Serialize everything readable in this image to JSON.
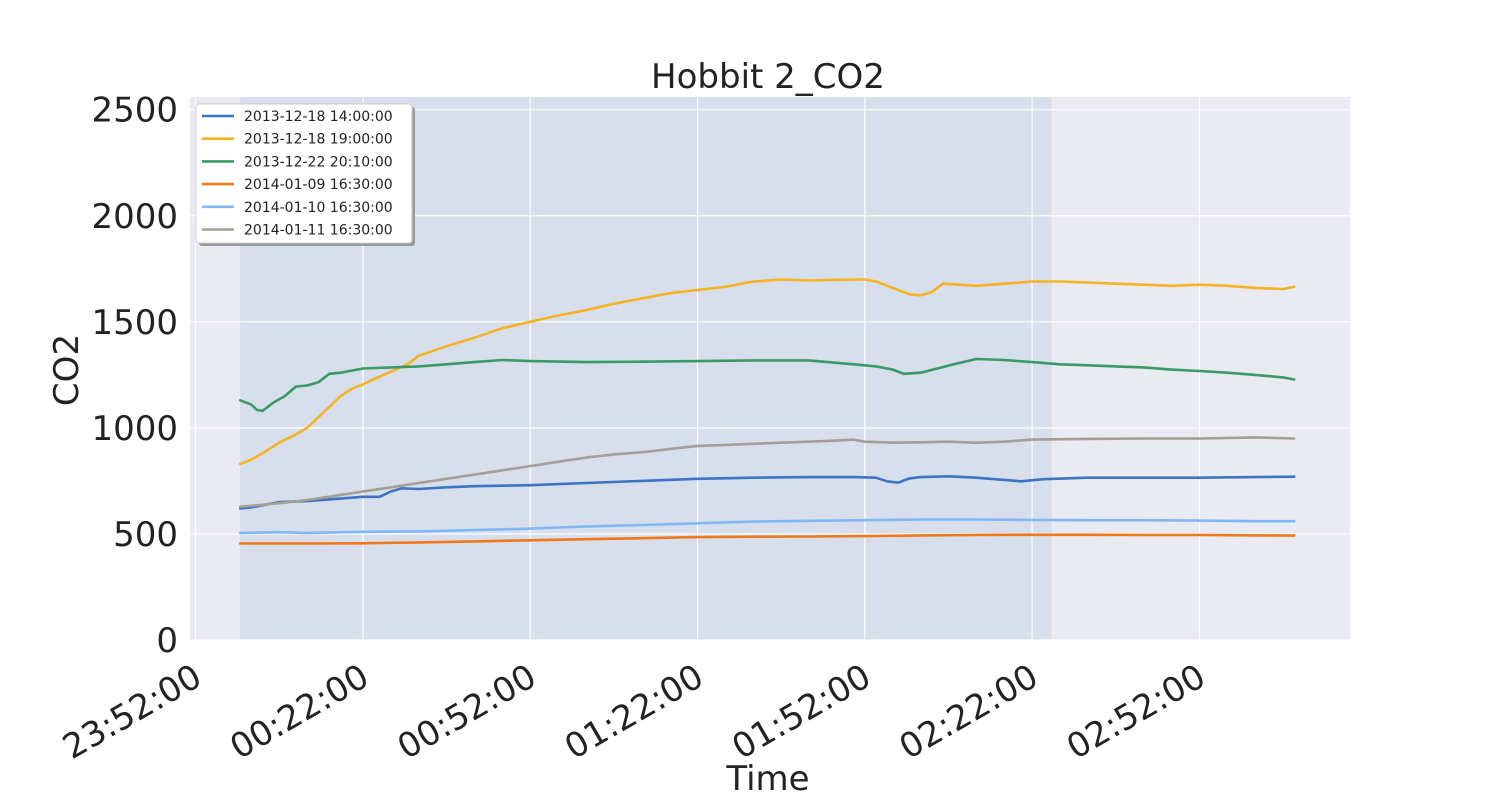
{
  "chart_data": {
    "type": "line",
    "title": "Hobbit 2_CO2",
    "xlabel": "Time",
    "ylabel": "CO2",
    "x_tick_labels": [
      "23:52:00",
      "00:22:00",
      "00:52:00",
      "01:22:00",
      "01:52:00",
      "02:22:00",
      "02:52:00"
    ],
    "x_tick_minutes": [
      0,
      30,
      60,
      90,
      120,
      150,
      180
    ],
    "xlim_minutes": [
      -1,
      207
    ],
    "y_ticks": [
      0,
      500,
      1000,
      1500,
      2000,
      2500
    ],
    "ylim": [
      0,
      2560
    ],
    "shaded_span_minutes": [
      8,
      153.5
    ],
    "grid": true,
    "legend_position": "top-left",
    "series": [
      {
        "name": "2013-12-18 14:00:00",
        "color": "#3a75c4",
        "points": [
          [
            8,
            620
          ],
          [
            10,
            625
          ],
          [
            15,
            650
          ],
          [
            20,
            655
          ],
          [
            25,
            665
          ],
          [
            30,
            675
          ],
          [
            33,
            675
          ],
          [
            35,
            700
          ],
          [
            37,
            715
          ],
          [
            40,
            712
          ],
          [
            45,
            720
          ],
          [
            50,
            725
          ],
          [
            60,
            730
          ],
          [
            70,
            740
          ],
          [
            80,
            750
          ],
          [
            90,
            760
          ],
          [
            100,
            765
          ],
          [
            110,
            768
          ],
          [
            118,
            768
          ],
          [
            122,
            765
          ],
          [
            124,
            748
          ],
          [
            126,
            742
          ],
          [
            128,
            762
          ],
          [
            130,
            768
          ],
          [
            135,
            772
          ],
          [
            140,
            765
          ],
          [
            145,
            755
          ],
          [
            148,
            748
          ],
          [
            152,
            758
          ],
          [
            160,
            765
          ],
          [
            170,
            765
          ],
          [
            180,
            765
          ],
          [
            190,
            768
          ],
          [
            197,
            770
          ]
        ]
      },
      {
        "name": "2013-12-18 19:00:00",
        "color": "#f5b323",
        "points": [
          [
            8,
            830
          ],
          [
            10,
            850
          ],
          [
            12,
            880
          ],
          [
            15,
            930
          ],
          [
            18,
            970
          ],
          [
            20,
            1000
          ],
          [
            22,
            1050
          ],
          [
            24,
            1100
          ],
          [
            26,
            1150
          ],
          [
            28,
            1185
          ],
          [
            30,
            1205
          ],
          [
            32,
            1230
          ],
          [
            35,
            1265
          ],
          [
            38,
            1300
          ],
          [
            40,
            1340
          ],
          [
            45,
            1385
          ],
          [
            50,
            1425
          ],
          [
            55,
            1470
          ],
          [
            60,
            1500
          ],
          [
            65,
            1530
          ],
          [
            70,
            1555
          ],
          [
            75,
            1585
          ],
          [
            80,
            1610
          ],
          [
            85,
            1635
          ],
          [
            90,
            1650
          ],
          [
            95,
            1665
          ],
          [
            100,
            1690
          ],
          [
            105,
            1700
          ],
          [
            110,
            1695
          ],
          [
            115,
            1698
          ],
          [
            120,
            1700
          ],
          [
            122,
            1690
          ],
          [
            125,
            1660
          ],
          [
            128,
            1630
          ],
          [
            130,
            1625
          ],
          [
            132,
            1640
          ],
          [
            134,
            1680
          ],
          [
            140,
            1670
          ],
          [
            145,
            1680
          ],
          [
            150,
            1690
          ],
          [
            155,
            1690
          ],
          [
            160,
            1685
          ],
          [
            165,
            1680
          ],
          [
            170,
            1675
          ],
          [
            175,
            1670
          ],
          [
            180,
            1675
          ],
          [
            185,
            1670
          ],
          [
            190,
            1660
          ],
          [
            195,
            1655
          ],
          [
            197,
            1665
          ]
        ]
      },
      {
        "name": "2013-12-22 20:10:00",
        "color": "#3a9a64",
        "points": [
          [
            8,
            1130
          ],
          [
            10,
            1110
          ],
          [
            11,
            1085
          ],
          [
            12,
            1080
          ],
          [
            14,
            1120
          ],
          [
            16,
            1150
          ],
          [
            18,
            1195
          ],
          [
            20,
            1200
          ],
          [
            22,
            1215
          ],
          [
            24,
            1255
          ],
          [
            26,
            1260
          ],
          [
            28,
            1270
          ],
          [
            30,
            1280
          ],
          [
            35,
            1285
          ],
          [
            40,
            1290
          ],
          [
            45,
            1300
          ],
          [
            50,
            1310
          ],
          [
            55,
            1320
          ],
          [
            60,
            1315
          ],
          [
            70,
            1310
          ],
          [
            80,
            1312
          ],
          [
            90,
            1315
          ],
          [
            100,
            1318
          ],
          [
            110,
            1318
          ],
          [
            118,
            1300
          ],
          [
            122,
            1290
          ],
          [
            125,
            1275
          ],
          [
            127,
            1255
          ],
          [
            130,
            1260
          ],
          [
            133,
            1280
          ],
          [
            136,
            1300
          ],
          [
            140,
            1325
          ],
          [
            145,
            1320
          ],
          [
            150,
            1310
          ],
          [
            155,
            1300
          ],
          [
            160,
            1295
          ],
          [
            165,
            1290
          ],
          [
            170,
            1285
          ],
          [
            175,
            1275
          ],
          [
            180,
            1268
          ],
          [
            185,
            1260
          ],
          [
            190,
            1250
          ],
          [
            195,
            1238
          ],
          [
            197,
            1228
          ]
        ]
      },
      {
        "name": "2014-01-09 16:30:00",
        "color": "#f07819",
        "points": [
          [
            8,
            455
          ],
          [
            20,
            455
          ],
          [
            30,
            456
          ],
          [
            40,
            460
          ],
          [
            50,
            465
          ],
          [
            60,
            470
          ],
          [
            70,
            475
          ],
          [
            80,
            480
          ],
          [
            90,
            485
          ],
          [
            100,
            487
          ],
          [
            110,
            488
          ],
          [
            120,
            490
          ],
          [
            130,
            493
          ],
          [
            140,
            495
          ],
          [
            150,
            496
          ],
          [
            160,
            496
          ],
          [
            170,
            495
          ],
          [
            180,
            495
          ],
          [
            190,
            493
          ],
          [
            197,
            492
          ]
        ]
      },
      {
        "name": "2014-01-10 16:30:00",
        "color": "#7fb8f5",
        "points": [
          [
            8,
            505
          ],
          [
            15,
            508
          ],
          [
            20,
            505
          ],
          [
            30,
            510
          ],
          [
            40,
            512
          ],
          [
            50,
            518
          ],
          [
            60,
            525
          ],
          [
            70,
            535
          ],
          [
            80,
            542
          ],
          [
            90,
            550
          ],
          [
            100,
            558
          ],
          [
            110,
            562
          ],
          [
            120,
            565
          ],
          [
            130,
            568
          ],
          [
            140,
            568
          ],
          [
            150,
            566
          ],
          [
            160,
            565
          ],
          [
            170,
            565
          ],
          [
            180,
            563
          ],
          [
            190,
            560
          ],
          [
            197,
            560
          ]
        ]
      },
      {
        "name": "2014-01-11 16:30:00",
        "color": "#a49e94",
        "points": [
          [
            8,
            628
          ],
          [
            15,
            645
          ],
          [
            20,
            660
          ],
          [
            25,
            680
          ],
          [
            30,
            700
          ],
          [
            35,
            720
          ],
          [
            40,
            740
          ],
          [
            45,
            760
          ],
          [
            50,
            780
          ],
          [
            55,
            800
          ],
          [
            60,
            820
          ],
          [
            65,
            840
          ],
          [
            70,
            860
          ],
          [
            75,
            875
          ],
          [
            80,
            885
          ],
          [
            85,
            900
          ],
          [
            90,
            915
          ],
          [
            95,
            920
          ],
          [
            100,
            925
          ],
          [
            105,
            930
          ],
          [
            110,
            935
          ],
          [
            115,
            940
          ],
          [
            118,
            945
          ],
          [
            120,
            935
          ],
          [
            125,
            930
          ],
          [
            130,
            932
          ],
          [
            135,
            935
          ],
          [
            140,
            930
          ],
          [
            145,
            935
          ],
          [
            150,
            945
          ],
          [
            160,
            948
          ],
          [
            170,
            950
          ],
          [
            180,
            950
          ],
          [
            190,
            955
          ],
          [
            197,
            950
          ]
        ]
      }
    ]
  }
}
